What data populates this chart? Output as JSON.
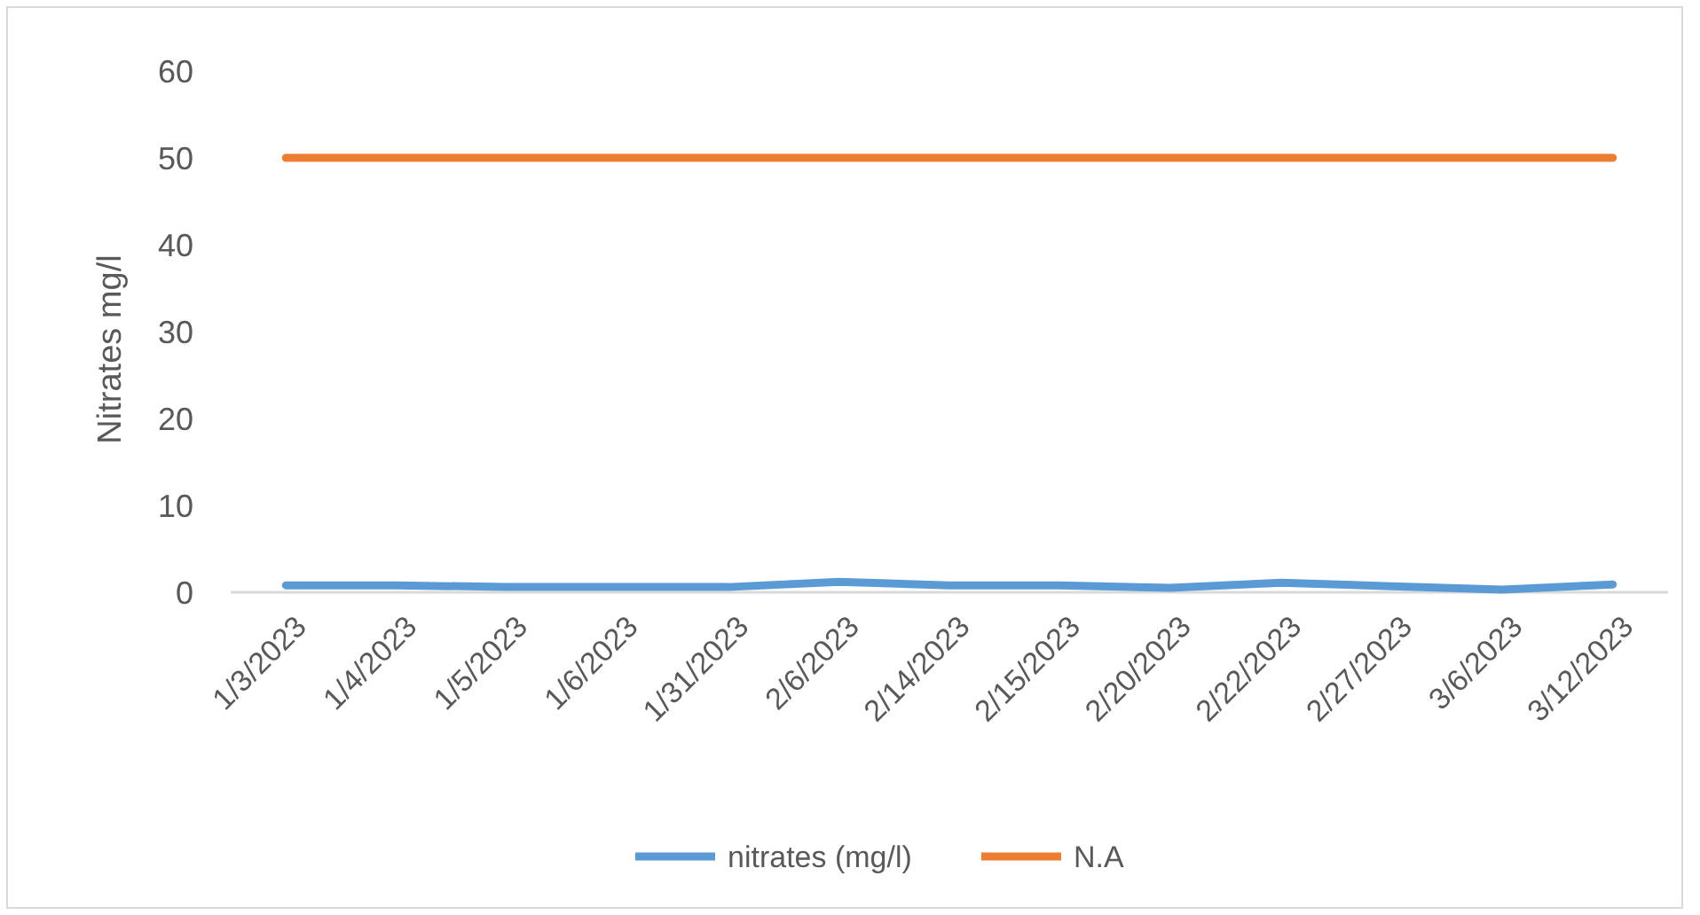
{
  "chart_data": {
    "type": "line",
    "ylabel": "Nitrates mg/l",
    "categories": [
      "1/3/2023",
      "1/4/2023",
      "1/5/2023",
      "1/6/2023",
      "1/31/2023",
      "2/6/2023",
      "2/14/2023",
      "2/15/2023",
      "2/20/2023",
      "2/22/2023",
      "2/27/2023",
      "3/6/2023",
      "3/12/2023"
    ],
    "series": [
      {
        "name": "nitrates (mg/l)",
        "color": "#5b9bd5",
        "values": [
          0.8,
          0.8,
          0.6,
          0.6,
          0.6,
          1.2,
          0.8,
          0.8,
          0.5,
          1.1,
          0.7,
          0.3,
          0.9
        ]
      },
      {
        "name": "N.A",
        "color": "#ed7d31",
        "values": [
          50,
          50,
          50,
          50,
          50,
          50,
          50,
          50,
          50,
          50,
          50,
          50,
          50
        ]
      }
    ],
    "ylim": [
      0,
      60
    ],
    "yticks": [
      0,
      10,
      20,
      30,
      40,
      50,
      60
    ],
    "grid": false,
    "legend": "bottom",
    "marker": "none",
    "line_style": "solid"
  }
}
